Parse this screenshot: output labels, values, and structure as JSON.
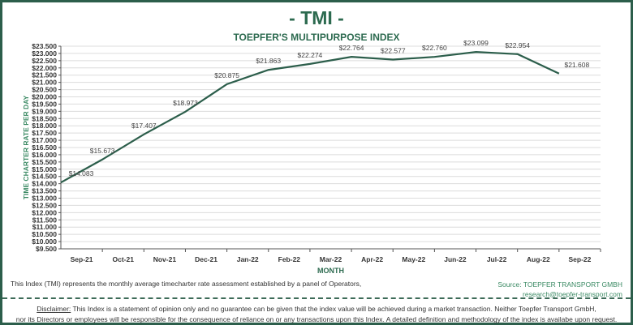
{
  "chart_data": {
    "type": "line",
    "title": "- TMI -",
    "subtitle": "TOEPFER'S MULTIPURPOSE INDEX",
    "xlabel": "MONTH",
    "ylabel": "TIME CHARTER RATE PER DAY",
    "ylim": [
      9500,
      23500
    ],
    "ytick_step": 500,
    "grid": true,
    "categories": [
      "Sep-21",
      "Oct-21",
      "Nov-21",
      "Dec-21",
      "Jan-22",
      "Feb-22",
      "Mar-22",
      "Apr-22",
      "May-22",
      "Jun-22",
      "Jul-22",
      "Aug-22",
      "Sep-22"
    ],
    "values": [
      14083,
      15673,
      17407,
      18973,
      20875,
      21863,
      22274,
      22764,
      22577,
      22760,
      23099,
      22954,
      21608
    ],
    "data_labels": [
      "$14.083",
      "$15.673",
      "$17.407",
      "$18.973",
      "$20.875",
      "$21.863",
      "$22.274",
      "$22.764",
      "$22.577",
      "$22.760",
      "$23.099",
      "$22.954",
      "$21.608"
    ],
    "line_color": "#2c5e4b"
  },
  "colors": {
    "accent": "#2c6a4f",
    "border": "#2c5e4b",
    "source": "#3b8a64"
  },
  "footer": {
    "note": "This Index (TMI) represents the monthly average timecharter rate assessment established by a panel of Operators,",
    "source": "Source: TOEPFER TRANSPORT GMBH",
    "email": "research@toepfer-transport.com",
    "disclaimer_label": "Disclaimer:",
    "disclaimer_line1": " This Index is a statement of opinion only and no guarantee can be given that the index value will be achieved during a market transaction. Neither Toepfer Transport GmbH,",
    "disclaimer_line2": "nor its Directors or employees will be responsible for the consequence of reliance on or any transactions upon this Index.  A detailed definition and methodology of the index is availabe upon request."
  }
}
